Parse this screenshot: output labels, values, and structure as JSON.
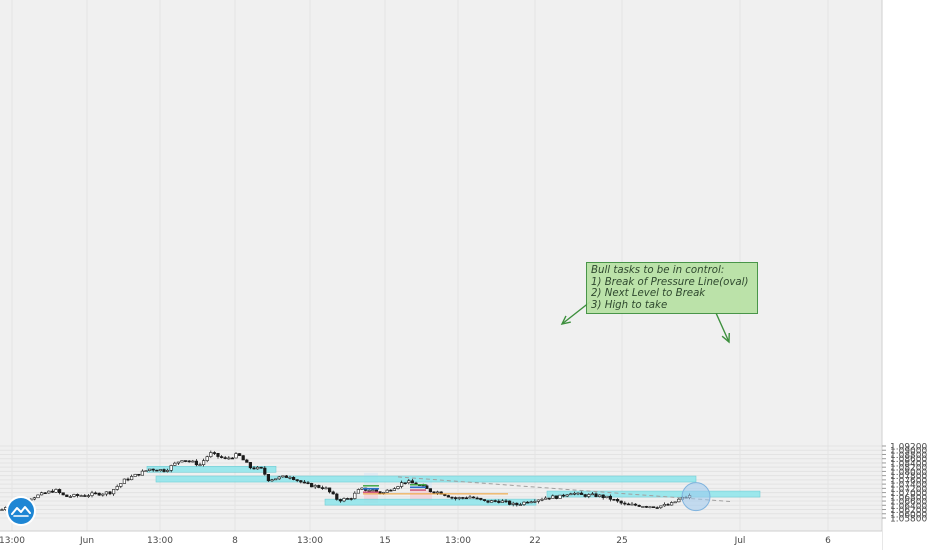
{
  "chart_data": {
    "type": "candlestick",
    "y_axis": {
      "position": "right",
      "ylim": [
        1.0574,
        1.0933
      ],
      "ticks": [
        "1.05800",
        "1.06000",
        "1.06200",
        "1.06400",
        "1.06600",
        "1.06800",
        "1.07000",
        "1.07200",
        "1.07400",
        "1.07600",
        "1.07800",
        "1.08000",
        "1.08200",
        "1.08400",
        "1.08600",
        "1.08800",
        "1.09000",
        "1.09200"
      ]
    },
    "x_axis": {
      "labels": [
        "13:00",
        "Jun",
        "13:00",
        "8",
        "13:00",
        "15",
        "13:00",
        "22",
        "25",
        "Jul",
        "6"
      ]
    },
    "grid": true,
    "price_path": [
      [
        0,
        1.0612
      ],
      [
        10,
        1.0651
      ],
      [
        30,
        1.0674
      ],
      [
        55,
        1.0712
      ],
      [
        65,
        1.0681
      ],
      [
        90,
        1.069
      ],
      [
        110,
        1.0702
      ],
      [
        125,
        1.076
      ],
      [
        150,
        1.0812
      ],
      [
        165,
        1.0805
      ],
      [
        182,
        1.0858
      ],
      [
        200,
        1.0832
      ],
      [
        210,
        1.0886
      ],
      [
        225,
        1.0858
      ],
      [
        238,
        1.088
      ],
      [
        250,
        1.0819
      ],
      [
        262,
        1.081
      ],
      [
        268,
        1.0762
      ],
      [
        290,
        1.0778
      ],
      [
        305,
        1.0739
      ],
      [
        325,
        1.0722
      ],
      [
        338,
        1.0665
      ],
      [
        350,
        1.0672
      ],
      [
        360,
        1.0716
      ],
      [
        372,
        1.0712
      ],
      [
        382,
        1.0696
      ],
      [
        392,
        1.0721
      ],
      [
        405,
        1.0752
      ],
      [
        418,
        1.0738
      ],
      [
        430,
        1.0708
      ],
      [
        440,
        1.0701
      ],
      [
        455,
        1.0672
      ],
      [
        470,
        1.068
      ],
      [
        485,
        1.0657
      ],
      [
        500,
        1.0661
      ],
      [
        515,
        1.0641
      ],
      [
        530,
        1.0662
      ],
      [
        548,
        1.0678
      ],
      [
        560,
        1.068
      ],
      [
        570,
        1.0702
      ],
      [
        580,
        1.0688
      ],
      [
        598,
        1.0686
      ],
      [
        610,
        1.0672
      ],
      [
        625,
        1.0642
      ],
      [
        640,
        1.064
      ],
      [
        655,
        1.0634
      ],
      [
        670,
        1.0642
      ],
      [
        680,
        1.067
      ],
      [
        690,
        1.0683
      ]
    ],
    "horizontal_levels": [
      {
        "price": 1.081,
        "x_start": 147,
        "x_end": 276
      },
      {
        "price": 1.0764,
        "x_start": 156,
        "x_end": 696
      },
      {
        "price": 1.0693,
        "x_start": 547,
        "x_end": 760
      },
      {
        "price": 1.0655,
        "x_start": 325,
        "x_end": 536
      }
    ],
    "trendline": {
      "from": [
        398,
        1.0774
      ],
      "to": [
        730,
        1.0658
      ]
    },
    "highlight_oval": {
      "x": 696,
      "price": 1.0681
    },
    "position_markers": [
      {
        "x": 371,
        "entry": 1.0718,
        "tp": 1.0732,
        "sl": 1.0702
      },
      {
        "x": 418,
        "entry": 1.0725,
        "tp": 1.0737,
        "sl": 1.0712
      }
    ],
    "orange_line": {
      "price": 1.0694,
      "x_start": 363,
      "x_end": 508
    },
    "annotation": {
      "lines": [
        "Bull tasks to be in control:",
        "1) Break of Pressure Line(oval)",
        "2) Next Level to Break",
        "3) High to take"
      ]
    },
    "colors": {
      "up_candle": "#ffffff",
      "down_candle": "#1a1a1a",
      "level_zone": "#8ee6ec",
      "trendline": "#a0a0a0",
      "arrow": "#3d8f3d",
      "oval": "#9cc9ee",
      "orange_line": "#f0a030",
      "box_red": "#f5c6d0",
      "box_blue": "#cfe2f3"
    }
  }
}
